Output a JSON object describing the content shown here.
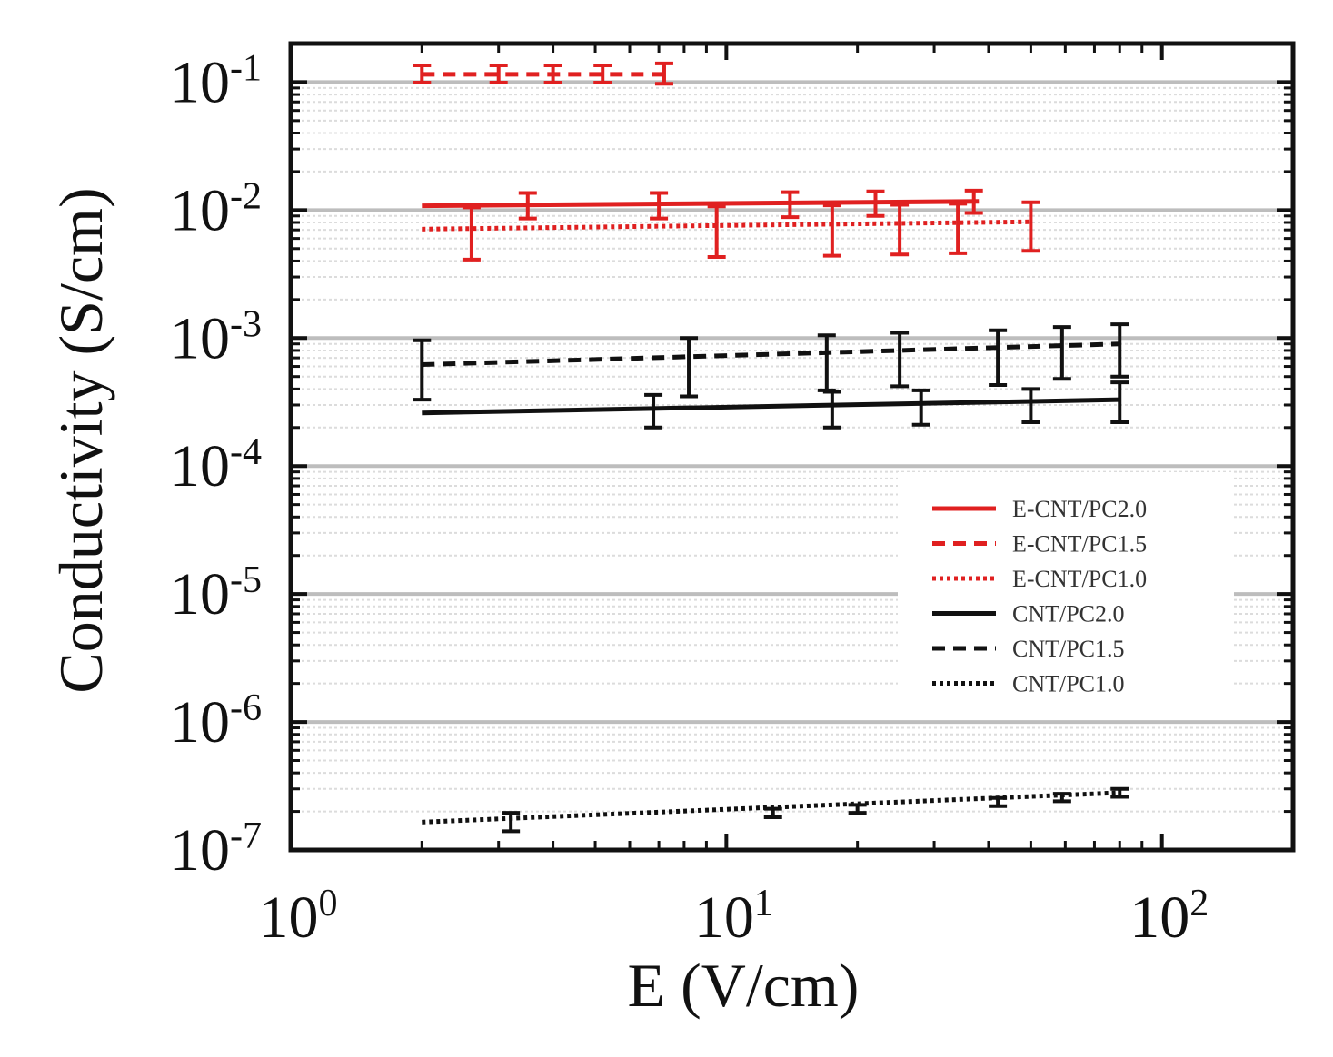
{
  "chart_data": {
    "type": "line",
    "title": "",
    "xlabel": "E (V/cm)",
    "ylabel": "Conductivity (S/cm)",
    "xscale": "log",
    "yscale": "log",
    "xlim": [
      1,
      200
    ],
    "ylim": [
      1e-07,
      0.2
    ],
    "grid": true,
    "legend_position": "center-right",
    "x_ticks": [
      {
        "value": 1,
        "base": "10",
        "exp": "0"
      },
      {
        "value": 10,
        "base": "10",
        "exp": "1"
      },
      {
        "value": 100,
        "base": "10",
        "exp": "2"
      }
    ],
    "y_ticks": [
      {
        "value": 0.1,
        "base": "10",
        "exp": "-1"
      },
      {
        "value": 0.01,
        "base": "10",
        "exp": "-2"
      },
      {
        "value": 0.001,
        "base": "10",
        "exp": "-3"
      },
      {
        "value": 0.0001,
        "base": "10",
        "exp": "-4"
      },
      {
        "value": 1e-05,
        "base": "10",
        "exp": "-5"
      },
      {
        "value": 1e-06,
        "base": "10",
        "exp": "-6"
      },
      {
        "value": 1e-07,
        "base": "10",
        "exp": "-7"
      }
    ],
    "series": [
      {
        "name": "E-CNT/PC2.0",
        "color": "#e02020",
        "dash": "solid",
        "line": [
          [
            2,
            0.0108
          ],
          [
            38,
            0.0117
          ]
        ],
        "points": [
          {
            "x": 3.5,
            "y": 0.0108,
            "lo": 0.0086,
            "hi": 0.0136
          },
          {
            "x": 7,
            "y": 0.0108,
            "lo": 0.0086,
            "hi": 0.0136
          },
          {
            "x": 14,
            "y": 0.011,
            "lo": 0.0088,
            "hi": 0.0138
          },
          {
            "x": 22,
            "y": 0.0112,
            "lo": 0.009,
            "hi": 0.014
          },
          {
            "x": 37,
            "y": 0.0115,
            "lo": 0.0095,
            "hi": 0.0142
          }
        ]
      },
      {
        "name": "E-CNT/PC1.5",
        "color": "#e02020",
        "dash": "dashed",
        "line": [
          [
            2,
            0.115
          ],
          [
            7.2,
            0.115
          ]
        ],
        "points": [
          {
            "x": 2,
            "y": 0.115,
            "lo": 0.099,
            "hi": 0.135
          },
          {
            "x": 3,
            "y": 0.115,
            "lo": 0.099,
            "hi": 0.135
          },
          {
            "x": 4,
            "y": 0.115,
            "lo": 0.099,
            "hi": 0.135
          },
          {
            "x": 5.2,
            "y": 0.115,
            "lo": 0.099,
            "hi": 0.135
          },
          {
            "x": 7.2,
            "y": 0.115,
            "lo": 0.097,
            "hi": 0.14
          }
        ]
      },
      {
        "name": "E-CNT/PC1.0",
        "color": "#e02020",
        "dash": "dotted",
        "line": [
          [
            2,
            0.0071
          ],
          [
            50,
            0.0081
          ]
        ],
        "points": [
          {
            "x": 2.6,
            "y": 0.0072,
            "lo": 0.0041,
            "hi": 0.0105
          },
          {
            "x": 9.5,
            "y": 0.0074,
            "lo": 0.0043,
            "hi": 0.0107
          },
          {
            "x": 17.5,
            "y": 0.0076,
            "lo": 0.0044,
            "hi": 0.0109
          },
          {
            "x": 25,
            "y": 0.0077,
            "lo": 0.0045,
            "hi": 0.011
          },
          {
            "x": 34,
            "y": 0.0079,
            "lo": 0.0046,
            "hi": 0.0112
          },
          {
            "x": 50,
            "y": 0.0081,
            "lo": 0.0048,
            "hi": 0.0115
          }
        ]
      },
      {
        "name": "CNT/PC2.0",
        "color": "#111111",
        "dash": "solid",
        "line": [
          [
            2,
            0.00026
          ],
          [
            80,
            0.00033
          ]
        ],
        "points": [
          {
            "x": 6.8,
            "y": 0.00027,
            "lo": 0.0002,
            "hi": 0.00036
          },
          {
            "x": 17.5,
            "y": 0.00029,
            "lo": 0.0002,
            "hi": 0.00038
          },
          {
            "x": 28,
            "y": 0.00029,
            "lo": 0.00021,
            "hi": 0.00039
          },
          {
            "x": 50,
            "y": 0.0003,
            "lo": 0.00022,
            "hi": 0.0004
          },
          {
            "x": 80,
            "y": 0.00032,
            "lo": 0.00022,
            "hi": 0.00045
          }
        ]
      },
      {
        "name": "CNT/PC1.5",
        "color": "#111111",
        "dash": "dashed",
        "line": [
          [
            2,
            0.00062
          ],
          [
            80,
            0.0009
          ]
        ],
        "points": [
          {
            "x": 2,
            "y": 0.00062,
            "lo": 0.00033,
            "hi": 0.00096
          },
          {
            "x": 8.2,
            "y": 0.00067,
            "lo": 0.00035,
            "hi": 0.001
          },
          {
            "x": 17,
            "y": 0.00072,
            "lo": 0.00039,
            "hi": 0.00105
          },
          {
            "x": 25,
            "y": 0.00075,
            "lo": 0.00042,
            "hi": 0.0011
          },
          {
            "x": 42,
            "y": 0.00078,
            "lo": 0.00043,
            "hi": 0.00115
          },
          {
            "x": 59,
            "y": 0.00083,
            "lo": 0.00048,
            "hi": 0.00122
          },
          {
            "x": 80,
            "y": 0.00088,
            "lo": 0.0005,
            "hi": 0.00128
          }
        ]
      },
      {
        "name": "CNT/PC1.0",
        "color": "#111111",
        "dash": "dotted",
        "line": [
          [
            2,
            1.65e-07
          ],
          [
            80,
            2.8e-07
          ]
        ],
        "points": [
          {
            "x": 3.2,
            "y": 1.65e-07,
            "lo": 1.4e-07,
            "hi": 1.95e-07
          },
          {
            "x": 12.8,
            "y": 1.95e-07,
            "lo": 1.8e-07,
            "hi": 2.1e-07
          },
          {
            "x": 20,
            "y": 2.1e-07,
            "lo": 1.95e-07,
            "hi": 2.25e-07
          },
          {
            "x": 42,
            "y": 2.35e-07,
            "lo": 2.2e-07,
            "hi": 2.55e-07
          },
          {
            "x": 59,
            "y": 2.55e-07,
            "lo": 2.4e-07,
            "hi": 2.75e-07
          },
          {
            "x": 80,
            "y": 2.8e-07,
            "lo": 2.6e-07,
            "hi": 3e-07
          }
        ]
      }
    ]
  }
}
